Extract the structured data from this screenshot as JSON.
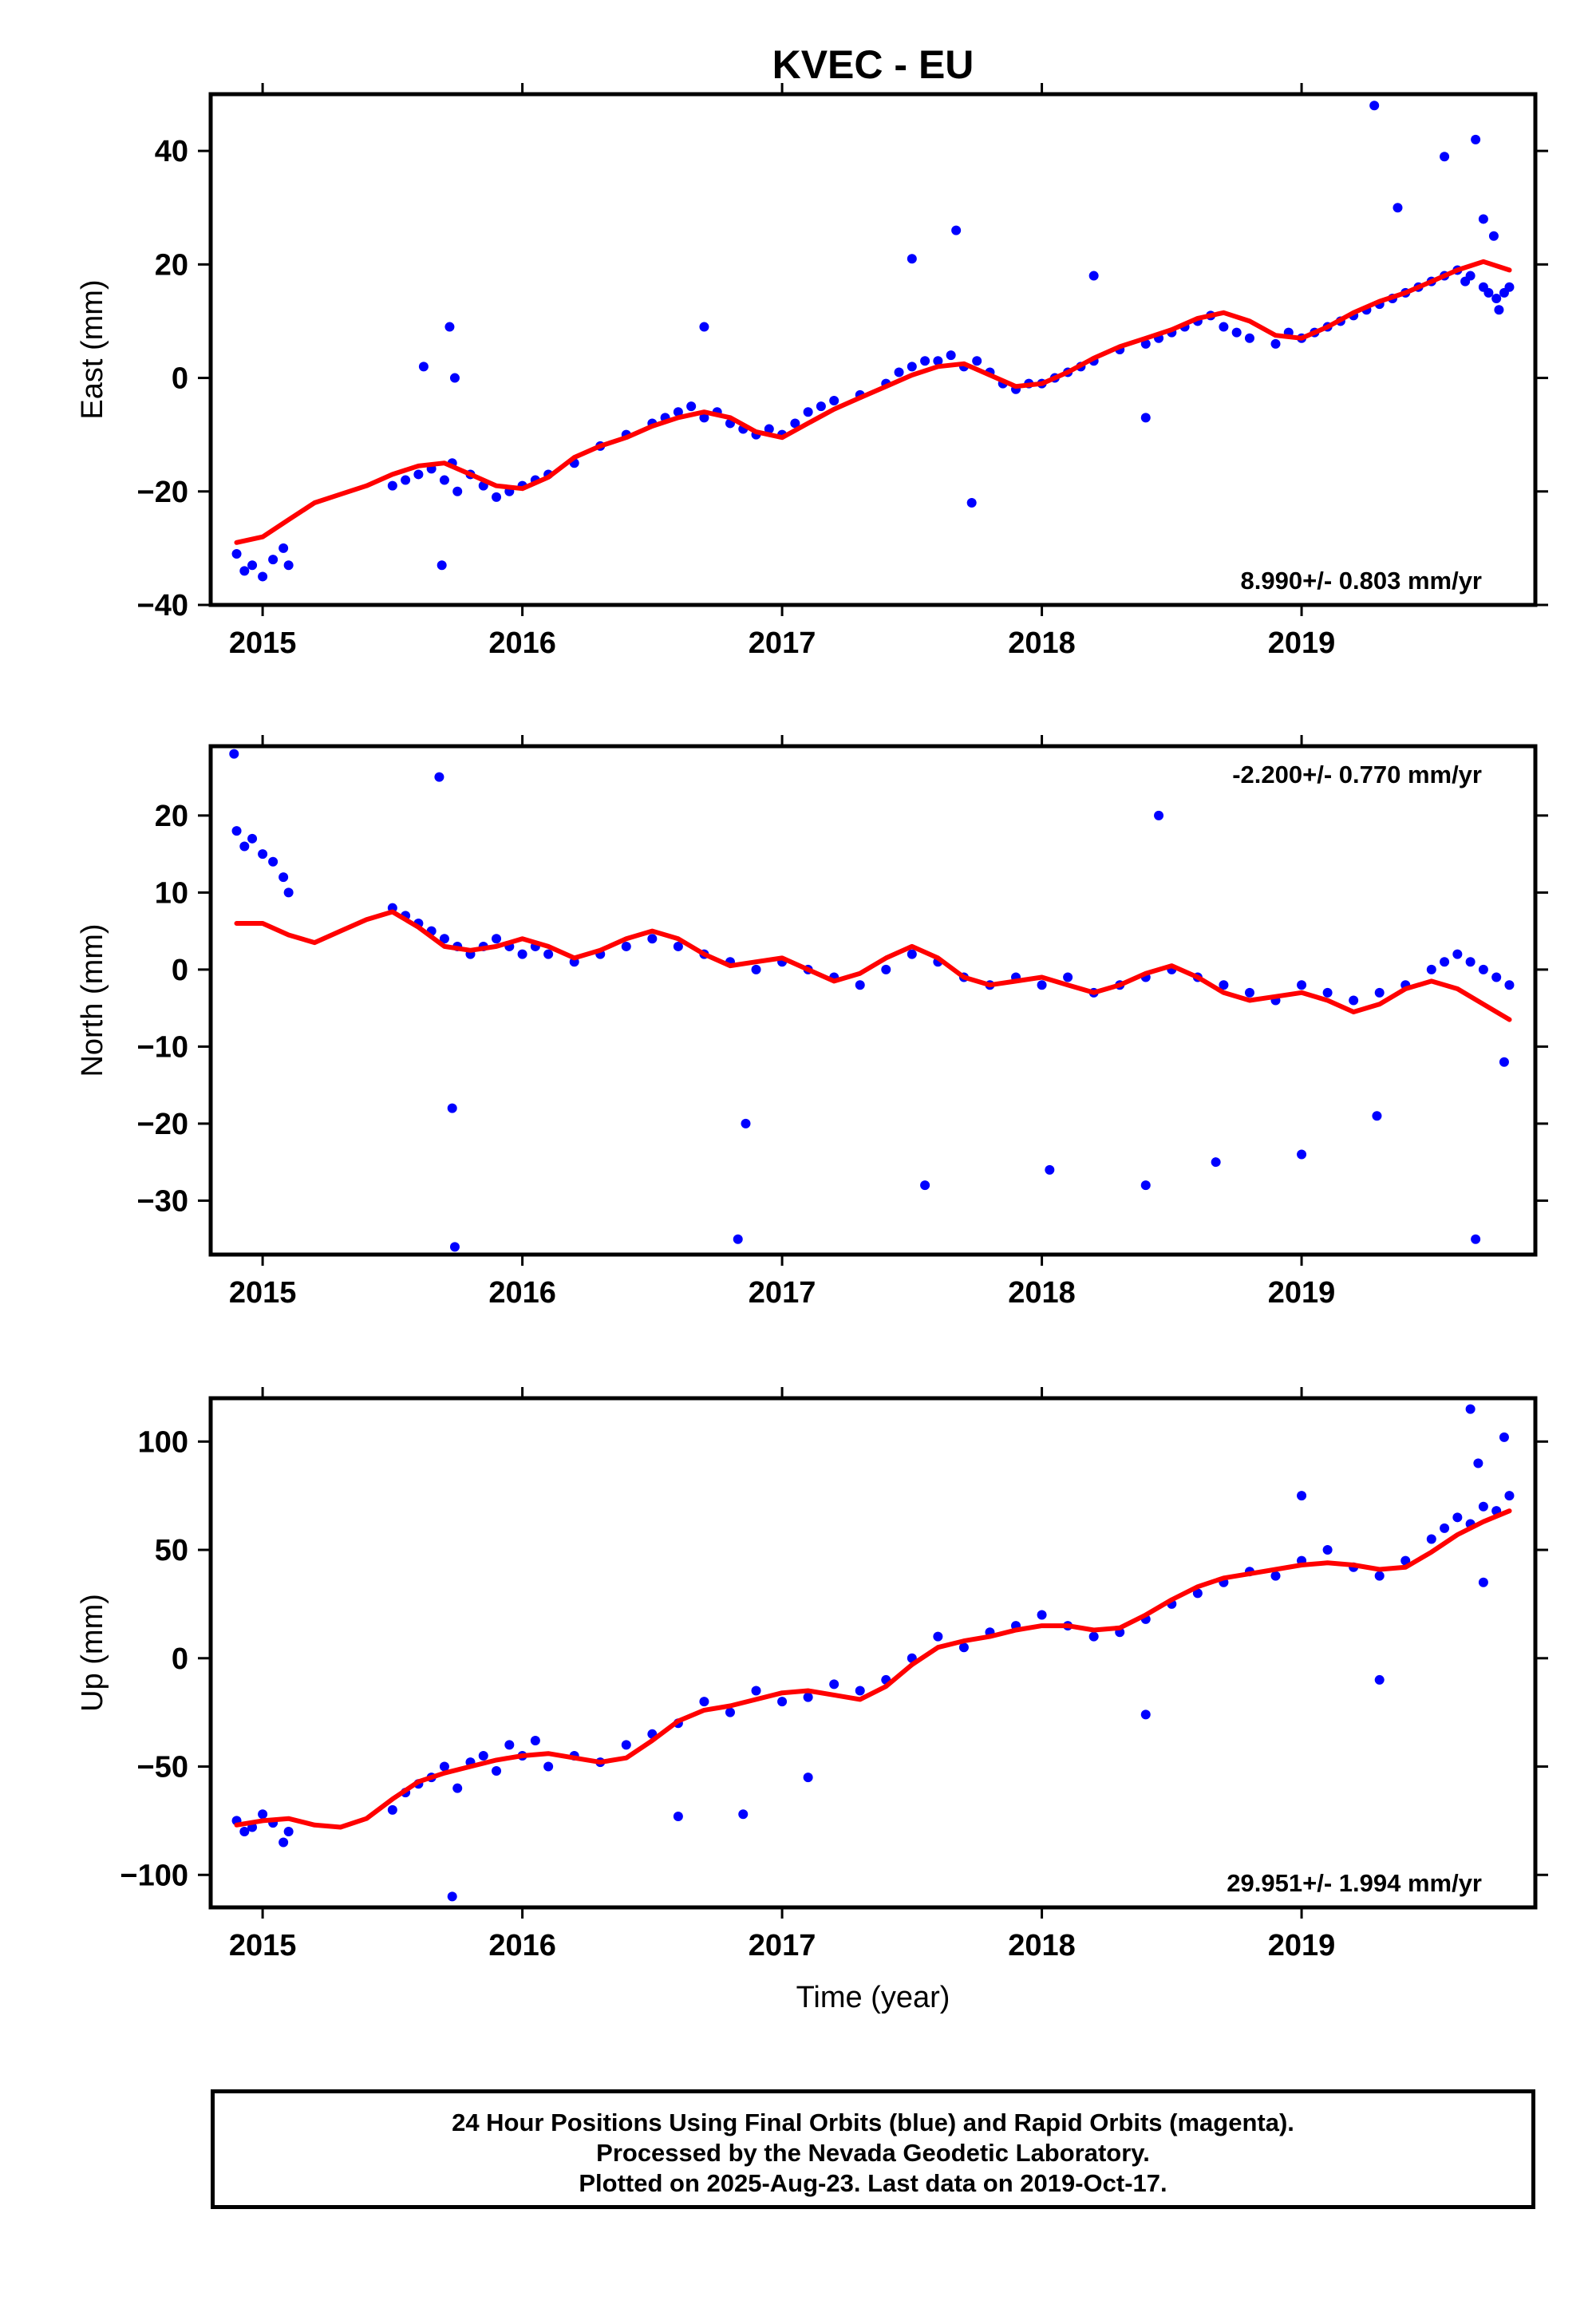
{
  "chart_data": {
    "title": "KVEC - EU",
    "xlabel": "Time (year)",
    "xlim": [
      2014.8,
      2019.9
    ],
    "xticks": [
      2015,
      2016,
      2017,
      2018,
      2019
    ],
    "colors": {
      "points": "#0000ff",
      "fit": "#ff0000"
    },
    "panels": [
      {
        "type": "scatter",
        "ylabel": "East (mm)",
        "ylim": [
          -40,
          50
        ],
        "yticks": [
          -40,
          -20,
          0,
          20,
          40
        ],
        "rate_label": "8.990+/- 0.803 mm/yr",
        "rate_position": "bottom-right",
        "fit_curve": {
          "x": [
            2014.9,
            2015.0,
            2015.1,
            2015.2,
            2015.3,
            2015.4,
            2015.5,
            2015.6,
            2015.7,
            2015.8,
            2015.9,
            2016.0,
            2016.1,
            2016.2,
            2016.3,
            2016.4,
            2016.5,
            2016.6,
            2016.7,
            2016.8,
            2016.9,
            2017.0,
            2017.1,
            2017.2,
            2017.3,
            2017.4,
            2017.5,
            2017.6,
            2017.7,
            2017.8,
            2017.9,
            2018.0,
            2018.1,
            2018.2,
            2018.3,
            2018.4,
            2018.5,
            2018.6,
            2018.7,
            2018.8,
            2018.9,
            2019.0,
            2019.1,
            2019.2,
            2019.3,
            2019.4,
            2019.5,
            2019.6,
            2019.7,
            2019.8
          ],
          "y": [
            -29,
            -28,
            -25,
            -22,
            -20.5,
            -19,
            -17,
            -15.5,
            -15,
            -17,
            -19,
            -19.5,
            -17.5,
            -14,
            -12,
            -10.5,
            -8.5,
            -7,
            -6,
            -7,
            -9.5,
            -10.5,
            -8,
            -5.5,
            -3.5,
            -1.5,
            0.5,
            2,
            2.5,
            0.5,
            -1.5,
            -1,
            1,
            3.5,
            5.5,
            7,
            8.5,
            10.5,
            11.5,
            10,
            7.5,
            7,
            9,
            11.5,
            13.5,
            15,
            17,
            19,
            20.5,
            19
          ]
        },
        "points": {
          "x": [
            2014.9,
            2014.93,
            2014.96,
            2015.0,
            2015.04,
            2015.08,
            2015.1,
            2015.5,
            2015.55,
            2015.6,
            2015.65,
            2015.7,
            2015.73,
            2015.75,
            2015.8,
            2015.85,
            2015.9,
            2015.95,
            2016.0,
            2016.05,
            2016.1,
            2016.2,
            2016.3,
            2016.4,
            2016.5,
            2016.55,
            2016.6,
            2016.65,
            2016.7,
            2016.75,
            2016.8,
            2016.85,
            2016.9,
            2016.95,
            2017.0,
            2017.05,
            2017.1,
            2017.15,
            2017.2,
            2017.3,
            2017.4,
            2017.45,
            2017.5,
            2017.55,
            2017.6,
            2017.65,
            2017.7,
            2017.75,
            2017.8,
            2017.85,
            2017.9,
            2017.95,
            2018.0,
            2018.05,
            2018.1,
            2018.15,
            2018.2,
            2018.3,
            2018.4,
            2018.45,
            2018.5,
            2018.55,
            2018.6,
            2018.65,
            2018.7,
            2018.75,
            2018.8,
            2018.9,
            2018.95,
            2019.0,
            2019.05,
            2019.1,
            2019.15,
            2019.2,
            2019.25,
            2019.3,
            2019.35,
            2019.4,
            2019.45,
            2019.5,
            2019.55,
            2019.6,
            2019.63,
            2019.65,
            2019.7,
            2019.72,
            2019.75,
            2019.78,
            2019.8,
            2015.62,
            2015.72,
            2015.74,
            2015.69,
            2016.7,
            2017.5,
            2017.73,
            2017.67,
            2018.2,
            2018.4,
            2019.28,
            2019.37,
            2019.55,
            2019.67,
            2019.7,
            2019.74,
            2019.76
          ],
          "y": [
            -31,
            -34,
            -33,
            -35,
            -32,
            -30,
            -33,
            -19,
            -18,
            -17,
            -16,
            -18,
            -15,
            -20,
            -17,
            -19,
            -21,
            -20,
            -19,
            -18,
            -17,
            -15,
            -12,
            -10,
            -8,
            -7,
            -6,
            -5,
            -7,
            -6,
            -8,
            -9,
            -10,
            -9,
            -10,
            -8,
            -6,
            -5,
            -4,
            -3,
            -1,
            1,
            2,
            3,
            3,
            4,
            2,
            3,
            1,
            -1,
            -2,
            -1,
            -1,
            0,
            1,
            2,
            3,
            5,
            6,
            7,
            8,
            9,
            10,
            11,
            9,
            8,
            7,
            6,
            8,
            7,
            8,
            9,
            10,
            11,
            12,
            13,
            14,
            15,
            16,
            17,
            18,
            19,
            17,
            18,
            16,
            15,
            14,
            15,
            16,
            2,
            9,
            0,
            -33,
            9,
            21,
            -22,
            26,
            18,
            -7,
            48,
            30,
            39,
            42,
            28,
            25,
            12
          ]
        }
      },
      {
        "type": "scatter",
        "ylabel": "North (mm)",
        "ylim": [
          -37,
          29
        ],
        "yticks": [
          -30,
          -20,
          -10,
          0,
          10,
          20
        ],
        "rate_label": "-2.200+/- 0.770 mm/yr",
        "rate_position": "top-right",
        "fit_curve": {
          "x": [
            2014.9,
            2015.0,
            2015.1,
            2015.2,
            2015.3,
            2015.4,
            2015.5,
            2015.6,
            2015.7,
            2015.8,
            2015.9,
            2016.0,
            2016.1,
            2016.2,
            2016.3,
            2016.4,
            2016.5,
            2016.6,
            2016.7,
            2016.8,
            2016.9,
            2017.0,
            2017.1,
            2017.2,
            2017.3,
            2017.4,
            2017.5,
            2017.6,
            2017.7,
            2017.8,
            2017.9,
            2018.0,
            2018.1,
            2018.2,
            2018.3,
            2018.4,
            2018.5,
            2018.6,
            2018.7,
            2018.8,
            2018.9,
            2019.0,
            2019.1,
            2019.2,
            2019.3,
            2019.4,
            2019.5,
            2019.6,
            2019.7,
            2019.8
          ],
          "y": [
            6,
            6,
            4.5,
            3.5,
            5,
            6.5,
            7.5,
            5.5,
            3,
            2.5,
            3,
            4,
            3,
            1.5,
            2.5,
            4,
            5,
            4,
            2,
            0.5,
            1,
            1.5,
            0,
            -1.5,
            -0.5,
            1.5,
            3,
            1.5,
            -1,
            -2,
            -1.5,
            -1,
            -2,
            -3,
            -2,
            -0.5,
            0.5,
            -1,
            -3,
            -4,
            -3.5,
            -3,
            -4,
            -5.5,
            -4.5,
            -2.5,
            -1.5,
            -2.5,
            -4.5,
            -6.5
          ]
        },
        "points": {
          "x": [
            2014.9,
            2014.93,
            2014.96,
            2015.0,
            2015.04,
            2015.08,
            2015.1,
            2015.5,
            2015.55,
            2015.6,
            2015.65,
            2015.7,
            2015.75,
            2015.8,
            2015.85,
            2015.9,
            2015.95,
            2016.0,
            2016.05,
            2016.1,
            2016.2,
            2016.3,
            2016.4,
            2016.5,
            2016.6,
            2016.7,
            2016.8,
            2016.9,
            2017.0,
            2017.1,
            2017.2,
            2017.3,
            2017.4,
            2017.5,
            2017.6,
            2017.7,
            2017.8,
            2017.9,
            2018.0,
            2018.1,
            2018.2,
            2018.3,
            2018.4,
            2018.5,
            2018.6,
            2018.7,
            2018.8,
            2018.9,
            2019.0,
            2019.1,
            2019.2,
            2019.3,
            2019.4,
            2019.5,
            2019.55,
            2019.6,
            2019.65,
            2019.7,
            2019.75,
            2019.8,
            2014.89,
            2015.68,
            2015.74,
            2015.73,
            2016.83,
            2016.86,
            2017.55,
            2018.03,
            2018.4,
            2018.45,
            2018.67,
            2019.0,
            2019.67,
            2019.78,
            2019.29
          ],
          "y": [
            18,
            16,
            17,
            15,
            14,
            12,
            10,
            8,
            7,
            6,
            5,
            4,
            3,
            2,
            3,
            4,
            3,
            2,
            3,
            2,
            1,
            2,
            3,
            4,
            3,
            2,
            1,
            0,
            1,
            0,
            -1,
            -2,
            0,
            2,
            1,
            -1,
            -2,
            -1,
            -2,
            -1,
            -3,
            -2,
            -1,
            0,
            -1,
            -2,
            -3,
            -4,
            -2,
            -3,
            -4,
            -3,
            -2,
            0,
            1,
            2,
            1,
            0,
            -1,
            -2,
            28,
            25,
            -36,
            -18,
            -35,
            -20,
            -28,
            -26,
            -28,
            20,
            -25,
            -24,
            -35,
            -12,
            -19
          ]
        }
      },
      {
        "type": "scatter",
        "ylabel": "Up (mm)",
        "ylim": [
          -115,
          120
        ],
        "yticks": [
          -100,
          -50,
          0,
          50,
          100
        ],
        "rate_label": "29.951+/- 1.994 mm/yr",
        "rate_position": "bottom-right",
        "fit_curve": {
          "x": [
            2014.9,
            2015.0,
            2015.1,
            2015.2,
            2015.3,
            2015.4,
            2015.5,
            2015.6,
            2015.7,
            2015.8,
            2015.9,
            2016.0,
            2016.1,
            2016.2,
            2016.3,
            2016.4,
            2016.5,
            2016.6,
            2016.7,
            2016.8,
            2016.9,
            2017.0,
            2017.1,
            2017.2,
            2017.3,
            2017.4,
            2017.5,
            2017.6,
            2017.7,
            2017.8,
            2017.9,
            2018.0,
            2018.1,
            2018.2,
            2018.3,
            2018.4,
            2018.5,
            2018.6,
            2018.7,
            2018.8,
            2018.9,
            2019.0,
            2019.1,
            2019.2,
            2019.3,
            2019.4,
            2019.5,
            2019.6,
            2019.7,
            2019.8
          ],
          "y": [
            -77,
            -75,
            -74,
            -77,
            -78,
            -74,
            -65,
            -57,
            -53,
            -50,
            -47,
            -45,
            -44,
            -46,
            -48,
            -46,
            -38,
            -29,
            -24,
            -22,
            -19,
            -16,
            -15,
            -17,
            -19,
            -13,
            -3,
            5,
            8,
            10,
            13,
            15,
            15,
            13,
            14,
            20,
            27,
            33,
            37,
            39,
            41,
            43,
            44,
            43,
            41,
            42,
            49,
            57,
            63,
            68
          ]
        },
        "points": {
          "x": [
            2014.9,
            2014.93,
            2014.96,
            2015.0,
            2015.04,
            2015.08,
            2015.1,
            2015.5,
            2015.55,
            2015.6,
            2015.65,
            2015.7,
            2015.75,
            2015.8,
            2015.85,
            2015.9,
            2015.95,
            2016.0,
            2016.05,
            2016.1,
            2016.2,
            2016.3,
            2016.4,
            2016.5,
            2016.6,
            2016.7,
            2016.8,
            2016.9,
            2017.0,
            2017.1,
            2017.2,
            2017.3,
            2017.4,
            2017.5,
            2017.6,
            2017.7,
            2017.8,
            2017.9,
            2018.0,
            2018.1,
            2018.2,
            2018.3,
            2018.4,
            2018.5,
            2018.6,
            2018.7,
            2018.8,
            2018.9,
            2019.0,
            2019.1,
            2019.2,
            2019.3,
            2019.4,
            2019.5,
            2019.55,
            2019.6,
            2019.65,
            2019.7,
            2019.75,
            2019.8,
            2015.73,
            2016.6,
            2016.85,
            2017.1,
            2018.4,
            2019.0,
            2019.3,
            2019.65,
            2019.68,
            2019.78,
            2019.7
          ],
          "y": [
            -75,
            -80,
            -78,
            -72,
            -76,
            -85,
            -80,
            -70,
            -62,
            -58,
            -55,
            -50,
            -60,
            -48,
            -45,
            -52,
            -40,
            -45,
            -38,
            -50,
            -45,
            -48,
            -40,
            -35,
            -30,
            -20,
            -25,
            -15,
            -20,
            -18,
            -12,
            -15,
            -10,
            0,
            10,
            5,
            12,
            15,
            20,
            15,
            10,
            12,
            18,
            25,
            30,
            35,
            40,
            38,
            45,
            50,
            42,
            38,
            45,
            55,
            60,
            65,
            62,
            70,
            68,
            75,
            -110,
            -73,
            -72,
            -55,
            -26,
            75,
            -10,
            115,
            90,
            102,
            35
          ]
        }
      }
    ]
  },
  "footer": {
    "line1": "24 Hour Positions Using Final Orbits (blue) and Rapid Orbits (magenta).",
    "line2": "Processed by the Nevada Geodetic Laboratory.",
    "line3": "Plotted on 2025-Aug-23. Last data on 2019-Oct-17."
  }
}
